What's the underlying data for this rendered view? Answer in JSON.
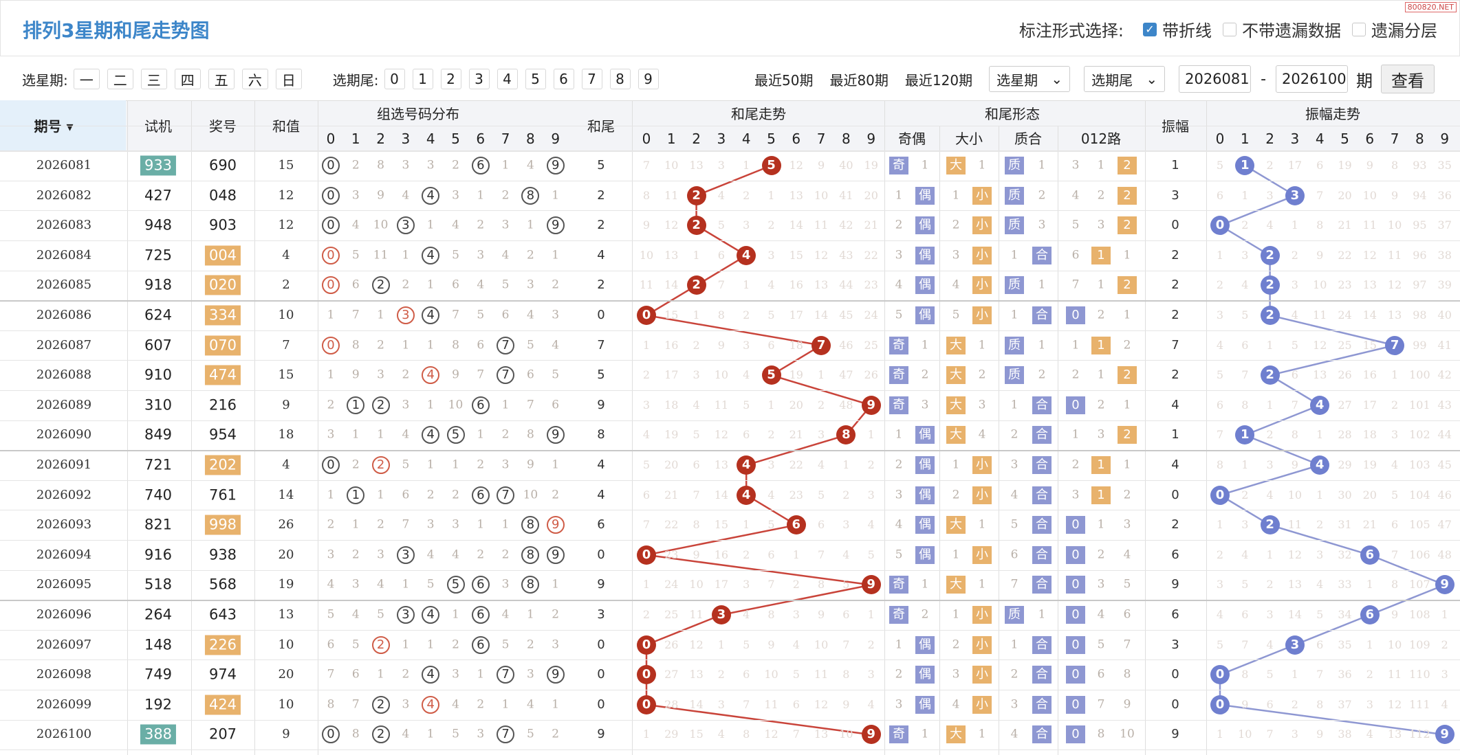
{
  "title": "排列3星期和尾走势图",
  "watermark": "800820.NET",
  "mark_opts": {
    "label": "标注形式选择:",
    "opts": [
      {
        "label": "带折线",
        "checked": true
      },
      {
        "label": "不带遗漏数据",
        "checked": false
      },
      {
        "label": "遗漏分层",
        "checked": false
      }
    ]
  },
  "filter": {
    "week_label": "选星期:",
    "weeks": [
      "一",
      "二",
      "三",
      "四",
      "五",
      "六",
      "日"
    ],
    "tail_label": "选期尾:",
    "tails": [
      "0",
      "1",
      "2",
      "3",
      "4",
      "5",
      "6",
      "7",
      "8",
      "9"
    ],
    "recent": [
      "最近50期",
      "最近80期",
      "最近120期"
    ],
    "sel_week": "选星期",
    "sel_tail": "选期尾",
    "from": "2026081",
    "to": "2026100",
    "unit": "期",
    "query": "查看"
  },
  "headers": {
    "period": "期号",
    "sj": "试机",
    "jh": "奖号",
    "hz": "和值",
    "dist": "组选号码分布",
    "hw": "和尾",
    "trend": "和尾走势",
    "form": "和尾形态",
    "zf": "振幅",
    "zftrend": "振幅走势",
    "oe": "奇偶",
    "bs": "大小",
    "pc": "质合",
    "r012": "012路",
    "digits": [
      "0",
      "1",
      "2",
      "3",
      "4",
      "5",
      "6",
      "7",
      "8",
      "9"
    ]
  },
  "colors": {
    "accent": "#3d86c9",
    "ball_red": "#b5311f",
    "ball_blue": "#6f7fcf",
    "box_blue": "#8e97d2",
    "box_orange": "#e8b26c",
    "sj_teal": "#6aaea6"
  },
  "rows": [
    {
      "p": "2026081",
      "sj": "933",
      "sjh": true,
      "jh": "690",
      "jhh": false,
      "hz": "15",
      "hw": "5",
      "zf": "1"
    },
    {
      "p": "2026082",
      "sj": "427",
      "sjh": false,
      "jh": "048",
      "jhh": false,
      "hz": "12",
      "hw": "2",
      "zf": "3"
    },
    {
      "p": "2026083",
      "sj": "948",
      "sjh": false,
      "jh": "903",
      "jhh": false,
      "hz": "12",
      "hw": "2",
      "zf": "0"
    },
    {
      "p": "2026084",
      "sj": "725",
      "sjh": false,
      "jh": "004",
      "jhh": true,
      "hz": "4",
      "hw": "4",
      "zf": "2"
    },
    {
      "p": "2026085",
      "sj": "918",
      "sjh": false,
      "jh": "020",
      "jhh": true,
      "hz": "2",
      "hw": "2",
      "zf": "2"
    },
    {
      "p": "2026086",
      "sj": "624",
      "sjh": false,
      "jh": "334",
      "jhh": true,
      "hz": "10",
      "hw": "0",
      "zf": "2"
    },
    {
      "p": "2026087",
      "sj": "607",
      "sjh": false,
      "jh": "070",
      "jhh": true,
      "hz": "7",
      "hw": "7",
      "zf": "7"
    },
    {
      "p": "2026088",
      "sj": "910",
      "sjh": false,
      "jh": "474",
      "jhh": true,
      "hz": "15",
      "hw": "5",
      "zf": "2"
    },
    {
      "p": "2026089",
      "sj": "310",
      "sjh": false,
      "jh": "216",
      "jhh": false,
      "hz": "9",
      "hw": "9",
      "zf": "4"
    },
    {
      "p": "2026090",
      "sj": "849",
      "sjh": false,
      "jh": "954",
      "jhh": false,
      "hz": "18",
      "hw": "8",
      "zf": "1"
    },
    {
      "p": "2026091",
      "sj": "721",
      "sjh": false,
      "jh": "202",
      "jhh": true,
      "hz": "4",
      "hw": "4",
      "zf": "4"
    },
    {
      "p": "2026092",
      "sj": "740",
      "sjh": false,
      "jh": "761",
      "jhh": false,
      "hz": "14",
      "hw": "4",
      "zf": "0"
    },
    {
      "p": "2026093",
      "sj": "821",
      "sjh": false,
      "jh": "998",
      "jhh": true,
      "hz": "26",
      "hw": "6",
      "zf": "2"
    },
    {
      "p": "2026094",
      "sj": "916",
      "sjh": false,
      "jh": "938",
      "jhh": false,
      "hz": "20",
      "hw": "0",
      "zf": "6"
    },
    {
      "p": "2026095",
      "sj": "518",
      "sjh": false,
      "jh": "568",
      "jhh": false,
      "hz": "19",
      "hw": "9",
      "zf": "9"
    },
    {
      "p": "2026096",
      "sj": "264",
      "sjh": false,
      "jh": "643",
      "jhh": false,
      "hz": "13",
      "hw": "3",
      "zf": "6"
    },
    {
      "p": "2026097",
      "sj": "148",
      "sjh": false,
      "jh": "226",
      "jhh": true,
      "hz": "10",
      "hw": "0",
      "zf": "3"
    },
    {
      "p": "2026098",
      "sj": "749",
      "sjh": false,
      "jh": "974",
      "jhh": false,
      "hz": "20",
      "hw": "0",
      "zf": "0"
    },
    {
      "p": "2026099",
      "sj": "192",
      "sjh": false,
      "jh": "424",
      "jhh": true,
      "hz": "10",
      "hw": "0",
      "zf": "0"
    },
    {
      "p": "2026100",
      "sj": "388",
      "sjh": true,
      "jh": "207",
      "jhh": false,
      "hz": "9",
      "hw": "9",
      "zf": "9"
    }
  ],
  "dist": [
    [
      "(0)",
      "2",
      "8",
      "3",
      "3",
      "2",
      "(6)",
      "1",
      "4",
      "(9)"
    ],
    [
      "(0)",
      "3",
      "9",
      "4",
      "(4)",
      "3",
      "1",
      "2",
      "(8)",
      "1"
    ],
    [
      "(0)",
      "4",
      "10",
      "(3)",
      "1",
      "4",
      "2",
      "3",
      "1",
      "(9)"
    ],
    [
      "r(0)",
      "5",
      "11",
      "1",
      "(4)",
      "5",
      "3",
      "4",
      "2",
      "1"
    ],
    [
      "r(0)",
      "6",
      "(2)",
      "2",
      "1",
      "6",
      "4",
      "5",
      "3",
      "2"
    ],
    [
      "1",
      "7",
      "1",
      "r(3)",
      "(4)",
      "7",
      "5",
      "6",
      "4",
      "3"
    ],
    [
      "r(0)",
      "8",
      "2",
      "1",
      "1",
      "8",
      "6",
      "(7)",
      "5",
      "4"
    ],
    [
      "1",
      "9",
      "3",
      "2",
      "r(4)",
      "9",
      "7",
      "(7)",
      "6",
      "5"
    ],
    [
      "2",
      "(1)",
      "(2)",
      "3",
      "1",
      "10",
      "(6)",
      "1",
      "7",
      "6"
    ],
    [
      "3",
      "1",
      "1",
      "4",
      "(4)",
      "(5)",
      "1",
      "2",
      "8",
      "(9)"
    ],
    [
      "(0)",
      "2",
      "r(2)",
      "5",
      "1",
      "1",
      "2",
      "3",
      "9",
      "1"
    ],
    [
      "1",
      "(1)",
      "1",
      "6",
      "2",
      "2",
      "(6)",
      "(7)",
      "10",
      "2"
    ],
    [
      "2",
      "1",
      "2",
      "7",
      "3",
      "3",
      "1",
      "1",
      "(8)",
      "r(9)"
    ],
    [
      "3",
      "2",
      "3",
      "(3)",
      "4",
      "4",
      "2",
      "2",
      "(8)",
      "(9)"
    ],
    [
      "4",
      "3",
      "4",
      "1",
      "5",
      "(5)",
      "(6)",
      "3",
      "(8)",
      "1"
    ],
    [
      "5",
      "4",
      "5",
      "(3)",
      "(4)",
      "1",
      "(6)",
      "4",
      "1",
      "2"
    ],
    [
      "6",
      "5",
      "r(2)",
      "1",
      "1",
      "2",
      "(6)",
      "5",
      "2",
      "3"
    ],
    [
      "7",
      "6",
      "1",
      "2",
      "(4)",
      "3",
      "1",
      "(7)",
      "3",
      "(9)"
    ],
    [
      "8",
      "7",
      "(2)",
      "3",
      "r(4)",
      "4",
      "2",
      "1",
      "4",
      "1"
    ],
    [
      "(0)",
      "8",
      "(2)",
      "4",
      "1",
      "5",
      "3",
      "(7)",
      "5",
      "2"
    ]
  ],
  "trend_omit": [
    [
      "7",
      "10",
      "13",
      "3",
      "1",
      "5",
      "12",
      "9",
      "40",
      "19"
    ],
    [
      "8",
      "11",
      "2",
      "4",
      "2",
      "1",
      "13",
      "10",
      "41",
      "20"
    ],
    [
      "9",
      "12",
      "2",
      "5",
      "3",
      "2",
      "14",
      "11",
      "42",
      "21"
    ],
    [
      "10",
      "13",
      "1",
      "6",
      "4",
      "3",
      "15",
      "12",
      "43",
      "22"
    ],
    [
      "11",
      "14",
      "2",
      "7",
      "1",
      "4",
      "16",
      "13",
      "44",
      "23"
    ],
    [
      "0",
      "15",
      "1",
      "8",
      "2",
      "5",
      "17",
      "14",
      "45",
      "24"
    ],
    [
      "1",
      "16",
      "2",
      "9",
      "3",
      "6",
      "18",
      "7",
      "46",
      "25"
    ],
    [
      "2",
      "17",
      "3",
      "10",
      "4",
      "5",
      "19",
      "1",
      "47",
      "26"
    ],
    [
      "3",
      "18",
      "4",
      "11",
      "5",
      "1",
      "20",
      "2",
      "48",
      "9"
    ],
    [
      "4",
      "19",
      "5",
      "12",
      "6",
      "2",
      "21",
      "3",
      "8",
      "1"
    ],
    [
      "5",
      "20",
      "6",
      "13",
      "4",
      "3",
      "22",
      "4",
      "1",
      "2"
    ],
    [
      "6",
      "21",
      "7",
      "14",
      "4",
      "4",
      "23",
      "5",
      "2",
      "3"
    ],
    [
      "7",
      "22",
      "8",
      "15",
      "1",
      "5",
      "6",
      "6",
      "3",
      "4"
    ],
    [
      "0",
      "23",
      "9",
      "16",
      "2",
      "6",
      "1",
      "7",
      "4",
      "5"
    ],
    [
      "1",
      "24",
      "10",
      "17",
      "3",
      "7",
      "2",
      "8",
      "5",
      "9"
    ],
    [
      "2",
      "25",
      "11",
      "3",
      "4",
      "8",
      "3",
      "9",
      "6",
      "1"
    ],
    [
      "0",
      "26",
      "12",
      "1",
      "5",
      "9",
      "4",
      "10",
      "7",
      "2"
    ],
    [
      "0",
      "27",
      "13",
      "2",
      "6",
      "10",
      "5",
      "11",
      "8",
      "3"
    ],
    [
      "0",
      "28",
      "14",
      "3",
      "7",
      "11",
      "6",
      "12",
      "9",
      "4"
    ],
    [
      "1",
      "29",
      "15",
      "4",
      "8",
      "12",
      "7",
      "13",
      "10",
      "9"
    ]
  ],
  "forms": [
    [
      "奇",
      "1",
      "大",
      "1",
      "质",
      "1",
      "3",
      "1",
      "2"
    ],
    [
      "1",
      "偶",
      "1",
      "小",
      "质",
      "2",
      "4",
      "2",
      "2"
    ],
    [
      "2",
      "偶",
      "2",
      "小",
      "质",
      "3",
      "5",
      "3",
      "2"
    ],
    [
      "3",
      "偶",
      "3",
      "小",
      "1",
      "合",
      "6",
      "1",
      "1"
    ],
    [
      "4",
      "偶",
      "4",
      "小",
      "质",
      "1",
      "7",
      "1",
      "2"
    ],
    [
      "5",
      "偶",
      "5",
      "小",
      "1",
      "合",
      "0",
      "2",
      "1"
    ],
    [
      "奇",
      "1",
      "大",
      "1",
      "质",
      "1",
      "1",
      "1",
      "2"
    ],
    [
      "奇",
      "2",
      "大",
      "2",
      "质",
      "2",
      "2",
      "1",
      "2"
    ],
    [
      "奇",
      "3",
      "大",
      "3",
      "1",
      "合",
      "0",
      "2",
      "1"
    ],
    [
      "1",
      "偶",
      "大",
      "4",
      "2",
      "合",
      "1",
      "3",
      "2"
    ],
    [
      "2",
      "偶",
      "1",
      "小",
      "3",
      "合",
      "2",
      "1",
      "1"
    ],
    [
      "3",
      "偶",
      "2",
      "小",
      "4",
      "合",
      "3",
      "1",
      "2"
    ],
    [
      "4",
      "偶",
      "大",
      "1",
      "5",
      "合",
      "0",
      "1",
      "3"
    ],
    [
      "5",
      "偶",
      "1",
      "小",
      "6",
      "合",
      "0",
      "2",
      "4"
    ],
    [
      "奇",
      "1",
      "大",
      "1",
      "7",
      "合",
      "0",
      "3",
      "5"
    ],
    [
      "奇",
      "2",
      "1",
      "小",
      "质",
      "1",
      "0",
      "4",
      "6"
    ],
    [
      "1",
      "偶",
      "2",
      "小",
      "1",
      "合",
      "0",
      "5",
      "7"
    ],
    [
      "2",
      "偶",
      "3",
      "小",
      "2",
      "合",
      "0",
      "6",
      "8"
    ],
    [
      "3",
      "偶",
      "4",
      "小",
      "3",
      "合",
      "0",
      "7",
      "9"
    ],
    [
      "奇",
      "1",
      "大",
      "1",
      "4",
      "合",
      "0",
      "8",
      "10"
    ]
  ],
  "zf_omit": [
    [
      "5",
      "1",
      "2",
      "17",
      "6",
      "19",
      "9",
      "8",
      "93",
      "35"
    ],
    [
      "6",
      "1",
      "3",
      "3",
      "7",
      "20",
      "10",
      "9",
      "94",
      "36"
    ],
    [
      "0",
      "2",
      "4",
      "1",
      "8",
      "21",
      "11",
      "10",
      "95",
      "37"
    ],
    [
      "1",
      "3",
      "2",
      "2",
      "9",
      "22",
      "12",
      "11",
      "96",
      "38"
    ],
    [
      "2",
      "4",
      "2",
      "3",
      "10",
      "23",
      "13",
      "12",
      "97",
      "39"
    ],
    [
      "3",
      "5",
      "2",
      "4",
      "11",
      "24",
      "14",
      "13",
      "98",
      "40"
    ],
    [
      "4",
      "6",
      "1",
      "5",
      "12",
      "25",
      "15",
      "7",
      "99",
      "41"
    ],
    [
      "5",
      "7",
      "2",
      "6",
      "13",
      "26",
      "16",
      "1",
      "100",
      "42"
    ],
    [
      "6",
      "8",
      "1",
      "7",
      "4",
      "27",
      "17",
      "2",
      "101",
      "43"
    ],
    [
      "7",
      "1",
      "2",
      "8",
      "1",
      "28",
      "18",
      "3",
      "102",
      "44"
    ],
    [
      "8",
      "1",
      "3",
      "9",
      "4",
      "29",
      "19",
      "4",
      "103",
      "45"
    ],
    [
      "0",
      "2",
      "4",
      "10",
      "1",
      "30",
      "20",
      "5",
      "104",
      "46"
    ],
    [
      "1",
      "3",
      "2",
      "11",
      "2",
      "31",
      "21",
      "6",
      "105",
      "47"
    ],
    [
      "2",
      "4",
      "1",
      "12",
      "3",
      "32",
      "6",
      "7",
      "106",
      "48"
    ],
    [
      "3",
      "5",
      "2",
      "13",
      "4",
      "33",
      "1",
      "8",
      "107",
      "9"
    ],
    [
      "4",
      "6",
      "3",
      "14",
      "5",
      "34",
      "6",
      "9",
      "108",
      "1"
    ],
    [
      "5",
      "7",
      "4",
      "3",
      "6",
      "35",
      "1",
      "10",
      "109",
      "2"
    ],
    [
      "0",
      "8",
      "5",
      "1",
      "7",
      "36",
      "2",
      "11",
      "110",
      "3"
    ],
    [
      "0",
      "9",
      "6",
      "2",
      "8",
      "37",
      "3",
      "12",
      "111",
      "4"
    ],
    [
      "1",
      "10",
      "7",
      "3",
      "9",
      "38",
      "4",
      "13",
      "112",
      "9"
    ]
  ]
}
